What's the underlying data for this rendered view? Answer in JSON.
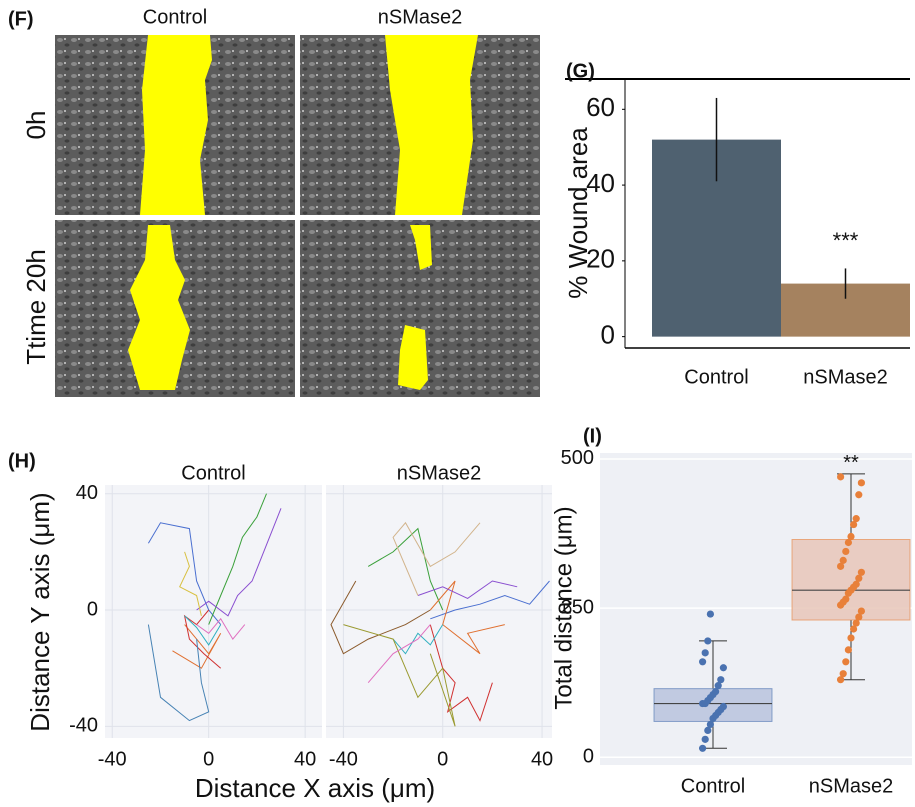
{
  "panel_f": {
    "label": "(F)",
    "columns": [
      "Control",
      "nSMase2"
    ],
    "rows": [
      "0h",
      "Ttime 20h"
    ]
  },
  "panel_h": {
    "label": "(H)",
    "xlabel": "Distance X axis (μm)",
    "ylabel": "Distance Y axis (μm)"
  },
  "chart_data": [
    {
      "type": "bar",
      "label": "(G)",
      "ylabel": "% Wound area",
      "categories": [
        "Control",
        "nSMase2"
      ],
      "values": [
        52,
        14
      ],
      "errors": [
        11,
        4
      ],
      "colors": [
        "#4f6170",
        "#a5825f"
      ],
      "value_annotations": [
        null,
        "***"
      ],
      "ylim": [
        -3,
        68
      ],
      "yticks": [
        0,
        20,
        40,
        60
      ]
    },
    {
      "type": "line",
      "title": "Control",
      "xlim": [
        -43,
        47
      ],
      "ylim": [
        -44,
        43
      ],
      "xticks": [
        -40,
        0,
        40
      ],
      "yticks": [
        -40,
        0,
        40
      ],
      "grid": true,
      "show_ytick_labels": true,
      "series": [
        {
          "color": "#4a6fd0",
          "x": [
            -25,
            -20,
            -8,
            -5,
            0,
            5
          ],
          "y": [
            23,
            30,
            28,
            10,
            0,
            -5
          ]
        },
        {
          "color": "#3aa03a",
          "x": [
            0,
            5,
            10,
            14,
            20,
            24
          ],
          "y": [
            -5,
            5,
            15,
            25,
            32,
            40
          ]
        },
        {
          "color": "#e07030",
          "x": [
            -10,
            -5,
            0,
            5,
            -3,
            -15
          ],
          "y": [
            -5,
            -10,
            -15,
            -8,
            -20,
            -14
          ]
        },
        {
          "color": "#8a4fd0",
          "x": [
            -5,
            0,
            8,
            12,
            18,
            30
          ],
          "y": [
            0,
            3,
            -2,
            5,
            10,
            35
          ]
        },
        {
          "color": "#d03030",
          "x": [
            0,
            -5,
            -10,
            -8,
            -2,
            5
          ],
          "y": [
            0,
            -5,
            -2,
            -10,
            -15,
            -20
          ]
        },
        {
          "color": "#e070c0",
          "x": [
            -5,
            0,
            5,
            10,
            15
          ],
          "y": [
            -5,
            -8,
            -3,
            -10,
            -5
          ]
        },
        {
          "color": "#d8c040",
          "x": [
            -10,
            -8,
            -12,
            -5,
            -3
          ],
          "y": [
            20,
            15,
            8,
            5,
            -2
          ]
        },
        {
          "color": "#4682b4",
          "x": [
            -5,
            -3,
            0,
            -8,
            -20,
            -25
          ],
          "y": [
            -10,
            -25,
            -35,
            -38,
            -30,
            -5
          ]
        },
        {
          "color": "#30b0c0",
          "x": [
            -10,
            -5,
            0,
            5
          ],
          "y": [
            -2,
            -6,
            -12,
            -5
          ]
        }
      ]
    },
    {
      "type": "line",
      "title": "nSMase2",
      "xlim": [
        -47,
        44
      ],
      "ylim": [
        -44,
        43
      ],
      "xticks": [
        -40,
        0,
        40
      ],
      "yticks": [
        -40,
        0,
        40
      ],
      "grid": true,
      "show_ytick_labels": false,
      "series": [
        {
          "color": "#4a6fd0",
          "x": [
            -5,
            5,
            15,
            25,
            35,
            43
          ],
          "y": [
            -3,
            0,
            2,
            5,
            2,
            10
          ]
        },
        {
          "color": "#d03030",
          "x": [
            -5,
            0,
            5,
            2,
            10,
            15,
            20
          ],
          "y": [
            -5,
            -20,
            -25,
            -35,
            -30,
            -38,
            -25
          ]
        },
        {
          "color": "#3aa03a",
          "x": [
            -30,
            -20,
            -10,
            -5,
            0
          ],
          "y": [
            15,
            20,
            28,
            10,
            0
          ]
        },
        {
          "color": "#8b5a2b",
          "x": [
            -5,
            -15,
            -30,
            -40,
            -45,
            -35
          ],
          "y": [
            0,
            -5,
            -10,
            -15,
            -5,
            10
          ]
        },
        {
          "color": "#e07030",
          "x": [
            -5,
            5,
            0,
            15,
            10,
            25
          ],
          "y": [
            0,
            10,
            -5,
            -15,
            -8,
            -5
          ]
        },
        {
          "color": "#8a4fd0",
          "x": [
            -10,
            0,
            10,
            20,
            30
          ],
          "y": [
            5,
            8,
            4,
            10,
            8
          ]
        },
        {
          "color": "#30b0c0",
          "x": [
            -20,
            -15,
            -10,
            -5,
            0
          ],
          "y": [
            -10,
            -15,
            -8,
            -12,
            -5
          ]
        },
        {
          "color": "#9a9a30",
          "x": [
            -40,
            -20,
            -10,
            0,
            5,
            -5
          ],
          "y": [
            -5,
            -10,
            -30,
            -20,
            -40,
            -15
          ]
        },
        {
          "color": "#d2b48c",
          "x": [
            -10,
            -20,
            -15,
            -5,
            5,
            15
          ],
          "y": [
            5,
            25,
            30,
            15,
            20,
            30
          ]
        },
        {
          "color": "#e070c0",
          "x": [
            -5,
            -10,
            -20,
            -25,
            -30
          ],
          "y": [
            -5,
            -10,
            -15,
            -20,
            -25
          ]
        }
      ]
    },
    {
      "type": "box",
      "label": "(I)",
      "ylabel": "Total distance (μm)",
      "categories": [
        "Control",
        "nSMase2"
      ],
      "colors": [
        "#4a72b0",
        "#e8803a"
      ],
      "fills": [
        "#b9c3dd",
        "#e8c6b9"
      ],
      "whisker_low": [
        15,
        130
      ],
      "q1": [
        60,
        230
      ],
      "median": [
        90,
        280
      ],
      "q3": [
        115,
        365
      ],
      "whisker_high": [
        195,
        475
      ],
      "points": [
        [
          15,
          30,
          45,
          55,
          65,
          70,
          75,
          80,
          85,
          90,
          90,
          95,
          100,
          105,
          110,
          120,
          130,
          150,
          160,
          175,
          195,
          240
        ],
        [
          130,
          140,
          160,
          180,
          200,
          215,
          225,
          235,
          245,
          255,
          260,
          265,
          275,
          280,
          285,
          290,
          300,
          310,
          320,
          330,
          345,
          360,
          370,
          390,
          400,
          440,
          460,
          470
        ]
      ],
      "value_annotations": [
        null,
        "**"
      ],
      "ylim": [
        -13,
        510
      ],
      "yticks": [
        0,
        250,
        500
      ],
      "grid": true
    }
  ]
}
